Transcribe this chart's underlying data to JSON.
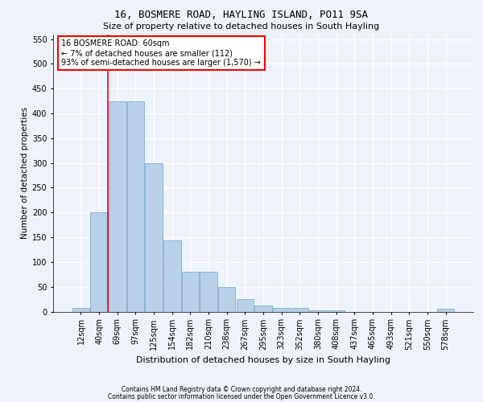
{
  "title1": "16, BOSMERE ROAD, HAYLING ISLAND, PO11 9SA",
  "title2": "Size of property relative to detached houses in South Hayling",
  "xlabel": "Distribution of detached houses by size in South Hayling",
  "ylabel": "Number of detached properties",
  "categories": [
    "12sqm",
    "40sqm",
    "69sqm",
    "97sqm",
    "125sqm",
    "154sqm",
    "182sqm",
    "210sqm",
    "238sqm",
    "267sqm",
    "295sqm",
    "323sqm",
    "352sqm",
    "380sqm",
    "408sqm",
    "437sqm",
    "465sqm",
    "493sqm",
    "521sqm",
    "550sqm",
    "578sqm"
  ],
  "values": [
    8,
    200,
    425,
    424,
    300,
    143,
    80,
    80,
    50,
    25,
    12,
    8,
    8,
    2,
    2,
    0,
    0,
    0,
    0,
    0,
    5
  ],
  "bar_color": "#b8d0e8",
  "bar_edge_color": "#7aafd4",
  "property_line_x": 1.5,
  "annotation_text": "16 BOSMERE ROAD: 60sqm\n← 7% of detached houses are smaller (112)\n93% of semi-detached houses are larger (1,570) →",
  "annotation_box_color": "white",
  "annotation_box_edge": "red",
  "vline_color": "red",
  "ylim": [
    0,
    560
  ],
  "yticks": [
    0,
    50,
    100,
    150,
    200,
    250,
    300,
    350,
    400,
    450,
    500,
    550
  ],
  "footer1": "Contains HM Land Registry data © Crown copyright and database right 2024.",
  "footer2": "Contains public sector information licensed under the Open Government Licence v3.0.",
  "background_color": "#eef2fb",
  "grid_color": "white",
  "title1_fontsize": 9,
  "title2_fontsize": 8,
  "ylabel_fontsize": 7.5,
  "xlabel_fontsize": 8,
  "tick_fontsize": 7,
  "footer_fontsize": 5.5,
  "annot_fontsize": 7
}
